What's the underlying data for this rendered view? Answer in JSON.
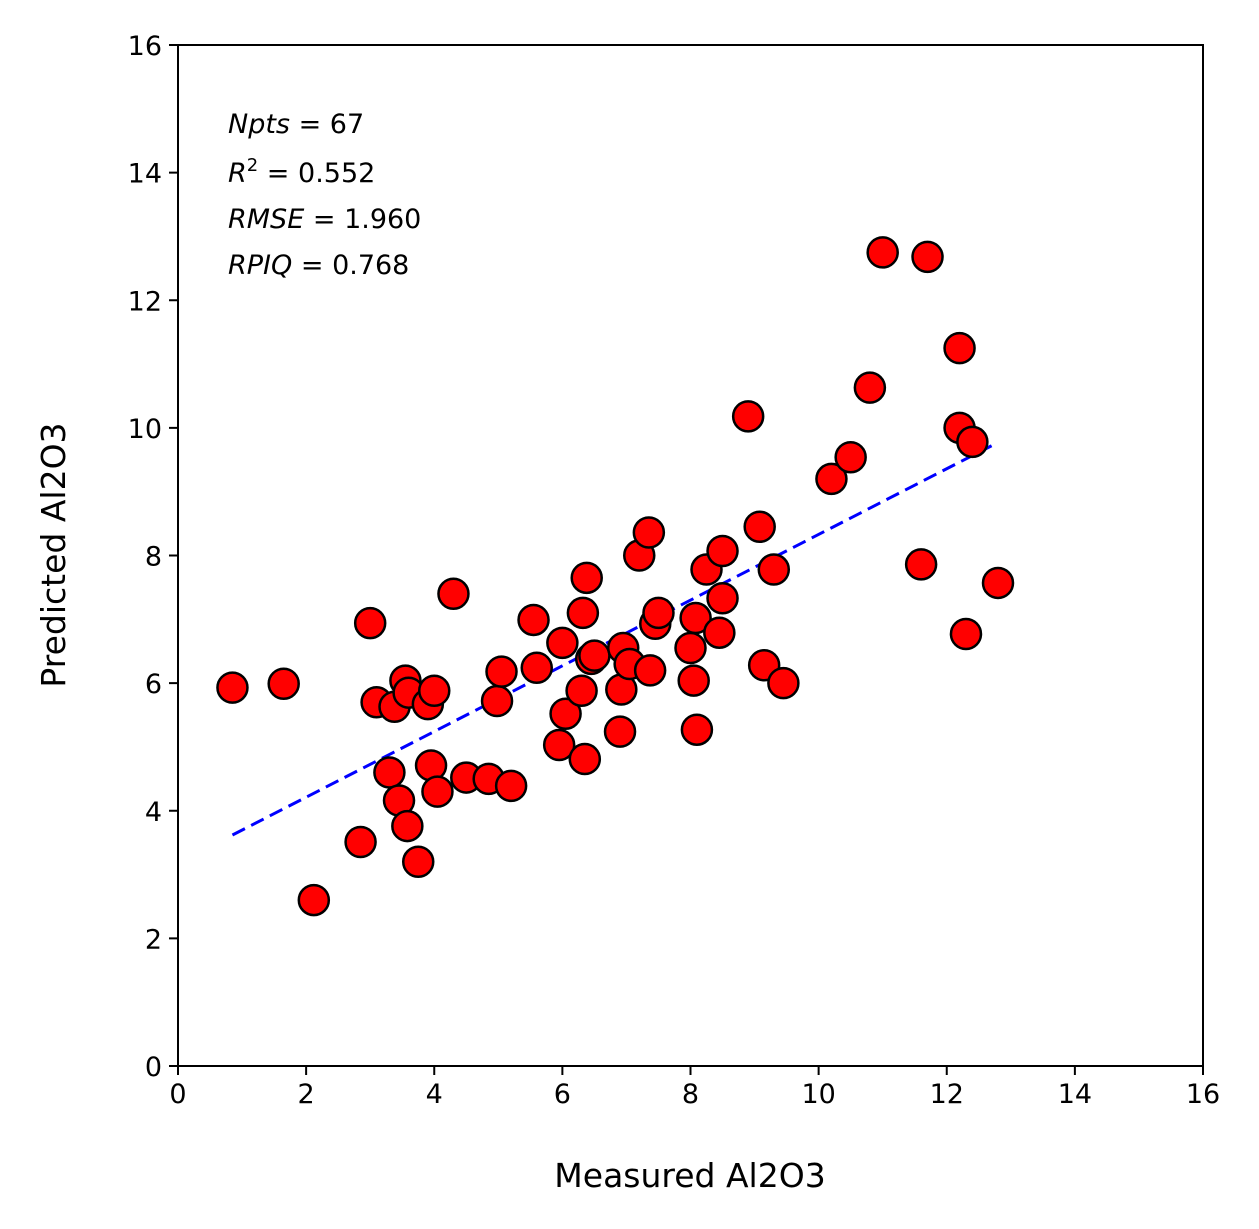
{
  "chart_data": {
    "type": "scatter",
    "xlabel": "Measured Al2O3",
    "ylabel": "Predicted Al2O3",
    "xlim": [
      0,
      16
    ],
    "ylim": [
      0,
      16
    ],
    "xticks": [
      "0",
      "2",
      "4",
      "6",
      "8",
      "10",
      "12",
      "14",
      "16"
    ],
    "yticks": [
      "0",
      "2",
      "4",
      "6",
      "8",
      "10",
      "12",
      "14",
      "16"
    ],
    "grid": false,
    "marker_color": "#ff0000",
    "marker_edge_color": "#000000",
    "fit_line_color": "#0000ff",
    "stats": {
      "npts": {
        "name": "Npts",
        "value": "67"
      },
      "r2": {
        "name": "R",
        "sup": "2",
        "value": "0.552"
      },
      "rmse": {
        "name": "RMSE",
        "value": "1.960"
      },
      "rpiq": {
        "name": "RPIQ",
        "value": "0.768"
      }
    },
    "fit_line": {
      "x": [
        0.85,
        12.7
      ],
      "y": [
        3.62,
        9.72
      ]
    },
    "points": [
      [
        0.85,
        5.93
      ],
      [
        1.65,
        5.99
      ],
      [
        2.12,
        2.6
      ],
      [
        2.85,
        3.51
      ],
      [
        3.0,
        6.94
      ],
      [
        3.1,
        5.7
      ],
      [
        3.3,
        4.6
      ],
      [
        3.38,
        5.63
      ],
      [
        3.45,
        4.16
      ],
      [
        3.55,
        6.04
      ],
      [
        3.58,
        3.76
      ],
      [
        3.6,
        5.85
      ],
      [
        3.75,
        3.2
      ],
      [
        3.9,
        5.67
      ],
      [
        3.95,
        4.71
      ],
      [
        4.0,
        5.88
      ],
      [
        4.05,
        4.3
      ],
      [
        4.3,
        7.4
      ],
      [
        4.5,
        4.52
      ],
      [
        4.85,
        4.5
      ],
      [
        4.98,
        5.72
      ],
      [
        5.05,
        6.18
      ],
      [
        5.2,
        4.39
      ],
      [
        5.55,
        6.99
      ],
      [
        5.6,
        6.24
      ],
      [
        5.95,
        5.03
      ],
      [
        6.0,
        6.63
      ],
      [
        6.05,
        5.52
      ],
      [
        6.3,
        5.88
      ],
      [
        6.32,
        7.1
      ],
      [
        6.35,
        4.81
      ],
      [
        6.38,
        7.65
      ],
      [
        6.45,
        6.38
      ],
      [
        6.5,
        6.43
      ],
      [
        6.9,
        5.24
      ],
      [
        6.92,
        5.9
      ],
      [
        6.95,
        6.55
      ],
      [
        7.05,
        6.3
      ],
      [
        7.2,
        8.0
      ],
      [
        7.35,
        8.36
      ],
      [
        7.37,
        6.2
      ],
      [
        7.45,
        6.93
      ],
      [
        7.5,
        7.1
      ],
      [
        8.0,
        6.55
      ],
      [
        8.05,
        6.04
      ],
      [
        8.08,
        7.02
      ],
      [
        8.1,
        5.27
      ],
      [
        8.25,
        7.78
      ],
      [
        8.45,
        6.79
      ],
      [
        8.5,
        7.33
      ],
      [
        8.5,
        8.07
      ],
      [
        8.9,
        10.18
      ],
      [
        9.08,
        8.45
      ],
      [
        9.15,
        6.28
      ],
      [
        9.3,
        7.78
      ],
      [
        9.45,
        6.0
      ],
      [
        10.2,
        9.2
      ],
      [
        10.5,
        9.54
      ],
      [
        10.8,
        10.63
      ],
      [
        11.0,
        12.75
      ],
      [
        11.6,
        7.86
      ],
      [
        11.7,
        12.68
      ],
      [
        12.2,
        11.25
      ],
      [
        12.2,
        10.0
      ],
      [
        12.3,
        6.77
      ],
      [
        12.4,
        9.78
      ],
      [
        12.8,
        7.57
      ]
    ]
  }
}
